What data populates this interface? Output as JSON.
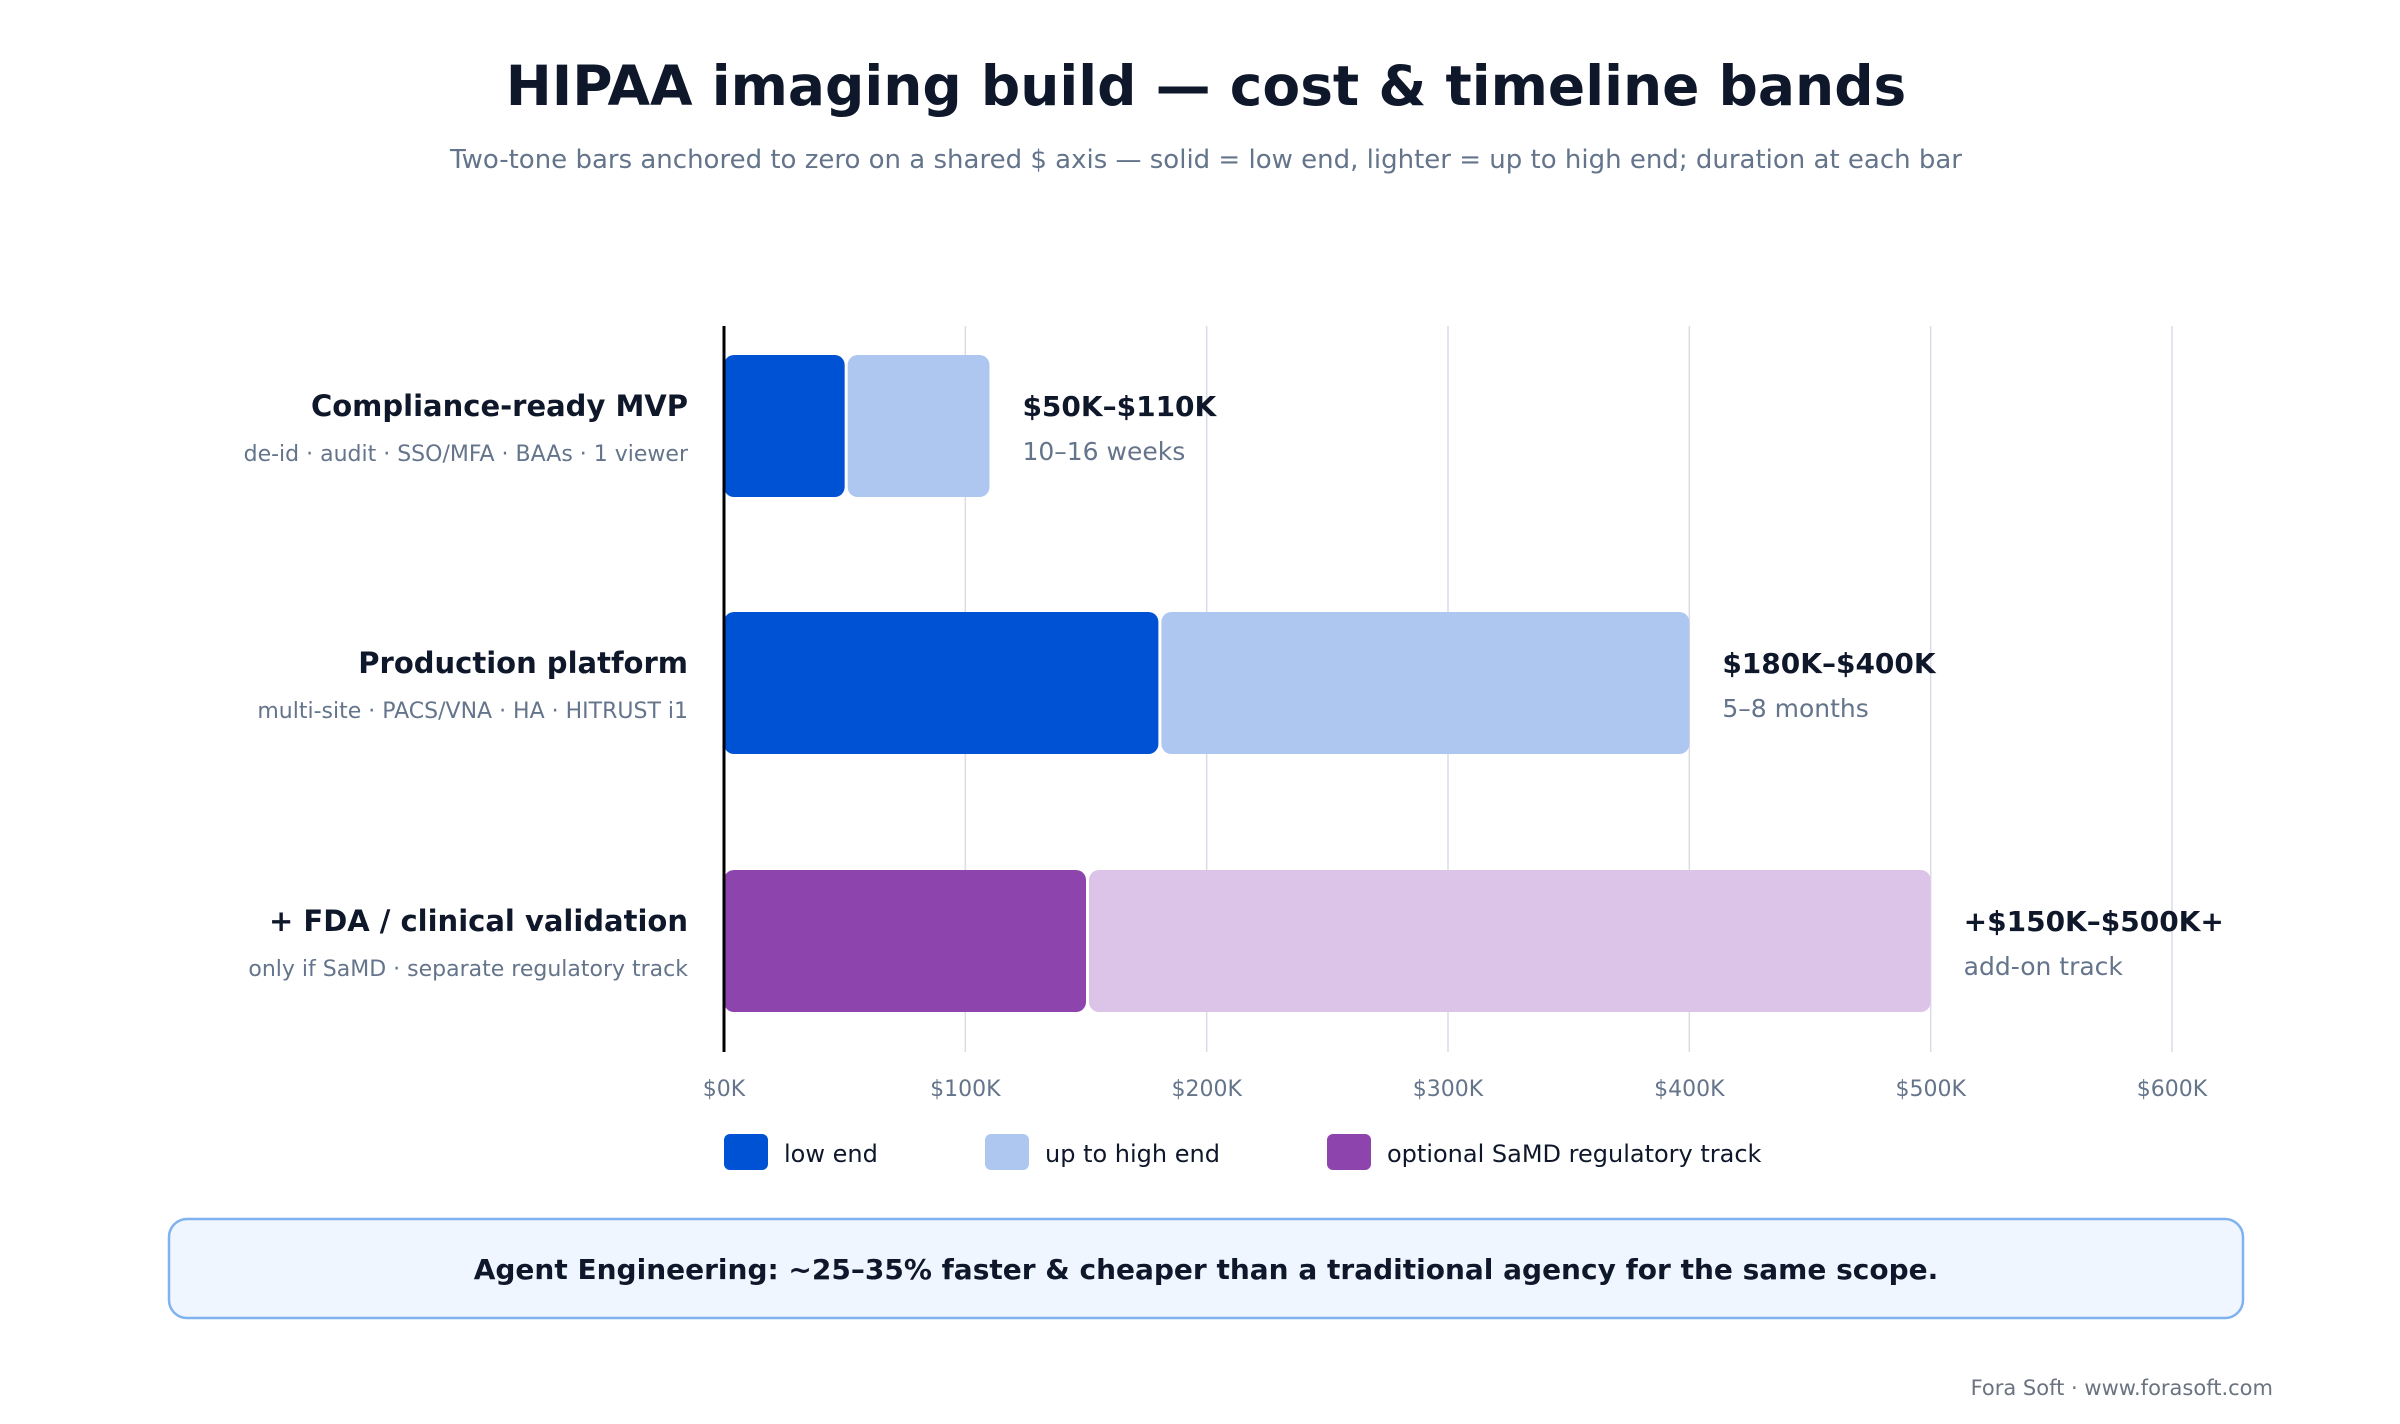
{
  "title": "HIPAA imaging build — cost & timeline bands",
  "subtitle": "Two-tone bars anchored to zero on a shared $ axis — solid = low end, lighter = up to high end; duration at each bar",
  "colors": {
    "low": "#0052d4",
    "high": "#aec7f1",
    "samd_low": "#8e44ad",
    "samd_high": "#dbc4e7",
    "grid": "#dcdce6",
    "axis": "#000000",
    "note_bg": "#eff6ff",
    "note_border": "#7fb2ee"
  },
  "chart_data": {
    "type": "bar",
    "orientation": "horizontal",
    "stacked": "overlapping range (low end solid, high end lighter)",
    "xlim": [
      0,
      600
    ],
    "x_unit": "$K",
    "x_ticks": [
      "$0K",
      "$100K",
      "$200K",
      "$300K",
      "$400K",
      "$500K",
      "$600K"
    ],
    "grid": true,
    "categories": [
      {
        "label": "Compliance-ready MVP",
        "sublabel": "de-id · audit · SSO/MFA · BAAs · 1 viewer",
        "low": 50,
        "high": 110,
        "value_label": "$50K–$110K",
        "duration": "10–16 weeks",
        "track": "core"
      },
      {
        "label": "Production platform",
        "sublabel": "multi-site · PACS/VNA · HA · HITRUST i1",
        "low": 180,
        "high": 400,
        "value_label": "$180K–$400K",
        "duration": "5–8 months",
        "track": "core"
      },
      {
        "label": "+ FDA / clinical validation",
        "sublabel": "only if SaMD · separate regulatory track",
        "low": 150,
        "high": 500,
        "value_label": "+$150K–$500K+",
        "duration": "add-on track",
        "track": "samd"
      }
    ],
    "legend": [
      {
        "label": "low end",
        "color_key": "low"
      },
      {
        "label": "up to high end",
        "color_key": "high"
      },
      {
        "label": "optional SaMD regulatory track",
        "color_key": "samd_low"
      }
    ],
    "legend_position": "bottom"
  },
  "note": "Agent Engineering: ~25–35% faster & cheaper than a traditional agency for the same scope.",
  "footer": "Fora Soft · www.forasoft.com"
}
